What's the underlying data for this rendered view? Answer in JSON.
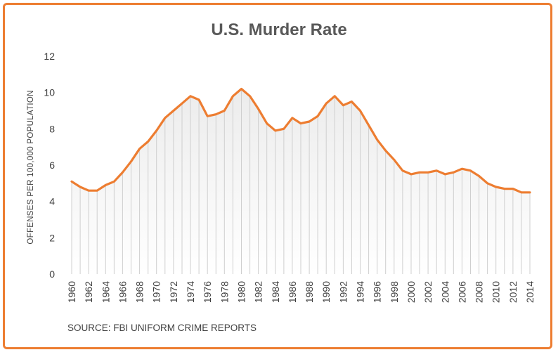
{
  "chart_data": {
    "type": "area",
    "title": "U.S. Murder Rate",
    "ylabel": "OFFENSES PER 100,000 POPULATION",
    "xlabel": "",
    "source": "SOURCE: FBI UNIFORM CRIME REPORTS",
    "ylim": [
      0,
      12
    ],
    "yticks": [
      0,
      2,
      4,
      6,
      8,
      10,
      12
    ],
    "xlim": [
      1960,
      2014
    ],
    "xticks": [
      1960,
      1962,
      1964,
      1966,
      1968,
      1970,
      1972,
      1974,
      1976,
      1978,
      1980,
      1982,
      1984,
      1986,
      1988,
      1990,
      1992,
      1994,
      1996,
      1998,
      2000,
      2002,
      2004,
      2006,
      2008,
      2010,
      2012,
      2014
    ],
    "grid": false,
    "legend": "none",
    "series": [
      {
        "color": "#ed7d31",
        "x": [
          1960,
          1961,
          1962,
          1963,
          1964,
          1965,
          1966,
          1967,
          1968,
          1969,
          1970,
          1971,
          1972,
          1973,
          1974,
          1975,
          1976,
          1977,
          1978,
          1979,
          1980,
          1981,
          1982,
          1983,
          1984,
          1985,
          1986,
          1987,
          1988,
          1989,
          1990,
          1991,
          1992,
          1993,
          1994,
          1995,
          1996,
          1997,
          1998,
          1999,
          2000,
          2001,
          2002,
          2003,
          2004,
          2005,
          2006,
          2007,
          2008,
          2009,
          2010,
          2011,
          2012,
          2013,
          2014
        ],
        "values": [
          5.1,
          4.8,
          4.6,
          4.6,
          4.9,
          5.1,
          5.6,
          6.2,
          6.9,
          7.3,
          7.9,
          8.6,
          9.0,
          9.4,
          9.8,
          9.6,
          8.7,
          8.8,
          9.0,
          9.8,
          10.2,
          9.8,
          9.1,
          8.3,
          7.9,
          8.0,
          8.6,
          8.3,
          8.4,
          8.7,
          9.4,
          9.8,
          9.3,
          9.5,
          9.0,
          8.2,
          7.4,
          6.8,
          6.3,
          5.7,
          5.5,
          5.6,
          5.6,
          5.7,
          5.5,
          5.6,
          5.8,
          5.7,
          5.4,
          5.0,
          4.8,
          4.7,
          4.7,
          4.5,
          4.5
        ]
      }
    ]
  }
}
